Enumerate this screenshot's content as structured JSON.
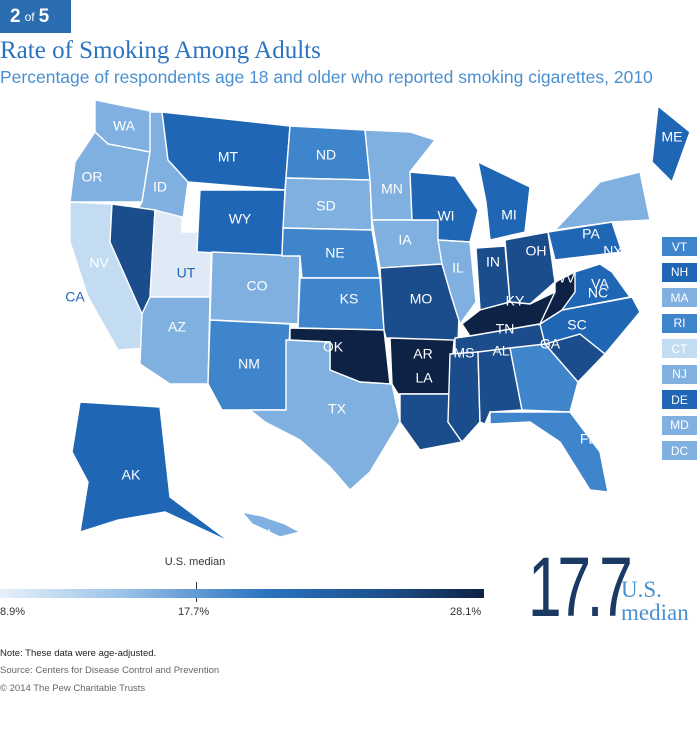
{
  "badge": {
    "current": "2",
    "of": "of",
    "total": "5"
  },
  "title": "Rate of Smoking Among Adults",
  "subtitle": "Percentage of respondents age 18 and older who reported smoking cigarettes, 2010",
  "colors": {
    "class1": "#c4dcf2",
    "class2": "#7fb0e0",
    "class3": "#3f85cc",
    "class4": "#1f66b5",
    "class5": "#1b4c8c",
    "class6": "#0d2244"
  },
  "states": [
    {
      "code": "WA",
      "cls": 2
    },
    {
      "code": "OR",
      "cls": 2
    },
    {
      "code": "CA",
      "cls": 1
    },
    {
      "code": "ID",
      "cls": 2
    },
    {
      "code": "NV",
      "cls": 5
    },
    {
      "code": "UT",
      "cls": 0
    },
    {
      "code": "AZ",
      "cls": 2
    },
    {
      "code": "MT",
      "cls": 4
    },
    {
      "code": "WY",
      "cls": 4
    },
    {
      "code": "CO",
      "cls": 2
    },
    {
      "code": "NM",
      "cls": 3
    },
    {
      "code": "ND",
      "cls": 3
    },
    {
      "code": "SD",
      "cls": 2
    },
    {
      "code": "NE",
      "cls": 3
    },
    {
      "code": "KS",
      "cls": 3
    },
    {
      "code": "OK",
      "cls": 6
    },
    {
      "code": "TX",
      "cls": 2
    },
    {
      "code": "MN",
      "cls": 2
    },
    {
      "code": "IA",
      "cls": 2
    },
    {
      "code": "MO",
      "cls": 5
    },
    {
      "code": "AR",
      "cls": 6
    },
    {
      "code": "LA",
      "cls": 5
    },
    {
      "code": "WI",
      "cls": 4
    },
    {
      "code": "IL",
      "cls": 2
    },
    {
      "code": "MI",
      "cls": 4
    },
    {
      "code": "IN",
      "cls": 5
    },
    {
      "code": "OH",
      "cls": 5
    },
    {
      "code": "KY",
      "cls": 6
    },
    {
      "code": "TN",
      "cls": 5
    },
    {
      "code": "MS",
      "cls": 5
    },
    {
      "code": "AL",
      "cls": 5
    },
    {
      "code": "GA",
      "cls": 3
    },
    {
      "code": "FL",
      "cls": 3
    },
    {
      "code": "SC",
      "cls": 5
    },
    {
      "code": "NC",
      "cls": 4
    },
    {
      "code": "VA",
      "cls": 4
    },
    {
      "code": "WV",
      "cls": 6
    },
    {
      "code": "PA",
      "cls": 4
    },
    {
      "code": "NY",
      "cls": 2
    },
    {
      "code": "ME",
      "cls": 4
    },
    {
      "code": "AK",
      "cls": 4
    },
    {
      "code": "HI",
      "cls": 2
    }
  ],
  "small_states": [
    {
      "code": "VT",
      "cls": 3
    },
    {
      "code": "NH",
      "cls": 4
    },
    {
      "code": "MA",
      "cls": 2
    },
    {
      "code": "RI",
      "cls": 3
    },
    {
      "code": "CT",
      "cls": 1
    },
    {
      "code": "NJ",
      "cls": 2
    },
    {
      "code": "DE",
      "cls": 4
    },
    {
      "code": "MD",
      "cls": 2
    },
    {
      "code": "DC",
      "cls": 2
    }
  ],
  "legend": {
    "min": "8.9%",
    "median": "17.7%",
    "max": "28.1%",
    "median_label": "U.S. median"
  },
  "headline": {
    "value": "17.7",
    "label_line1": "U.S.",
    "label_line2": "median"
  },
  "note": "Note: These data were age-adjusted.",
  "source": "Source: Centers for Disease Control and Prevention",
  "copyright": "© 2014 The Pew Charitable Trusts"
}
